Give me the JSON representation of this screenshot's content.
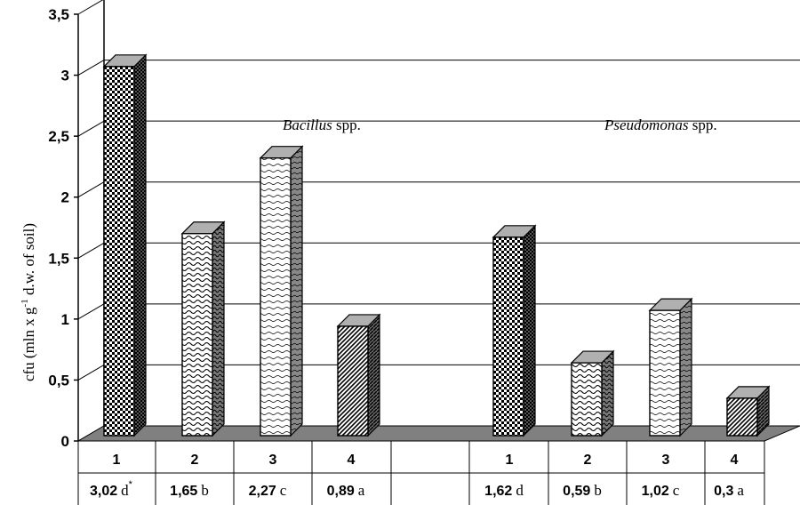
{
  "chart_data": {
    "type": "bar",
    "ylabel_main": "cfu (mln x g",
    "ylabel_sup": "-1",
    "ylabel_rest": " d.w. of soil)",
    "ylim": [
      0,
      3.5
    ],
    "yticks": [
      "0",
      "0,5",
      "1",
      "1,5",
      "2",
      "2,5",
      "3",
      "3,5"
    ],
    "grid": true,
    "groups": [
      {
        "label_italic": "Bacillus",
        "label_rest": " spp.",
        "bars": [
          {
            "category": "1",
            "value": 3.02,
            "value_label": "3,02",
            "significance": "d",
            "mark": "*",
            "pattern": "checker"
          },
          {
            "category": "2",
            "value": 1.65,
            "value_label": "1,65",
            "significance": "b",
            "mark": "",
            "pattern": "wave"
          },
          {
            "category": "3",
            "value": 2.27,
            "value_label": "2,27",
            "significance": "c",
            "mark": "",
            "pattern": "wave-light"
          },
          {
            "category": "4",
            "value": 0.89,
            "value_label": "0,89",
            "significance": "a",
            "mark": "",
            "pattern": "diag"
          }
        ]
      },
      {
        "label_italic": "Pseudomonas",
        "label_rest": " spp.",
        "bars": [
          {
            "category": "1",
            "value": 1.62,
            "value_label": "1,62",
            "significance": "d",
            "mark": "",
            "pattern": "checker"
          },
          {
            "category": "2",
            "value": 0.59,
            "value_label": "0,59",
            "significance": "b",
            "mark": "",
            "pattern": "wave"
          },
          {
            "category": "3",
            "value": 1.02,
            "value_label": "1,02",
            "significance": "c",
            "mark": "",
            "pattern": "wave-light"
          },
          {
            "category": "4",
            "value": 0.3,
            "value_label": "0,3",
            "significance": "a",
            "mark": "",
            "pattern": "diag"
          }
        ]
      }
    ]
  }
}
